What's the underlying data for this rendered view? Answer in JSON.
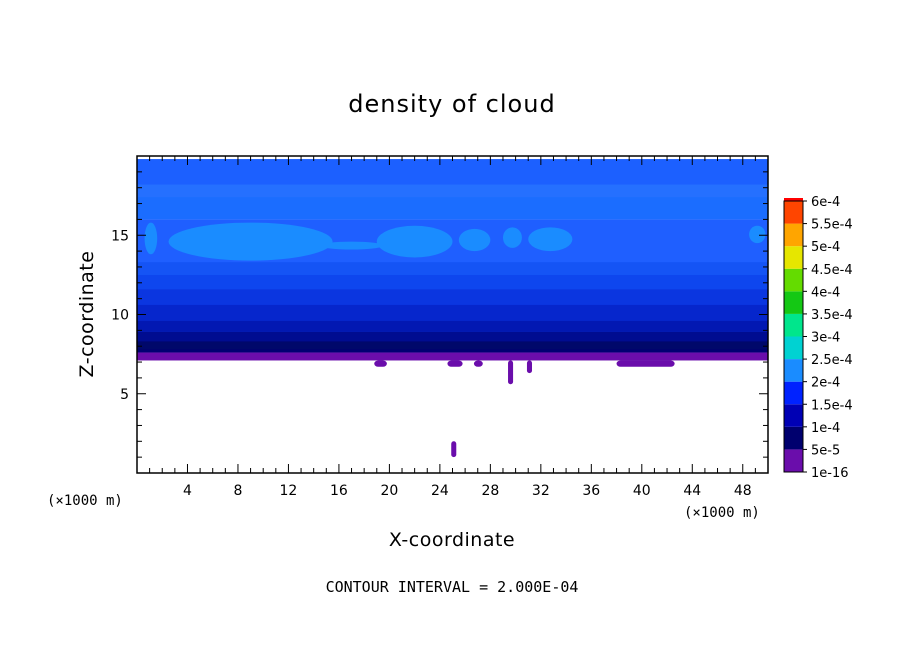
{
  "chart_data": {
    "type": "heatmap",
    "title": "density of cloud",
    "xlabel": "X-coordinate",
    "ylabel": "Z-coordinate",
    "x_unit": "(×1000 m)",
    "y_unit": "(×1000 m)",
    "xlim": [
      0,
      50
    ],
    "ylim": [
      0,
      20
    ],
    "x_ticks": [
      4,
      8,
      12,
      16,
      20,
      24,
      28,
      32,
      36,
      40,
      44,
      48
    ],
    "y_ticks": [
      5,
      10,
      15
    ],
    "footer": "CONTOUR INTERVAL = 2.000E-04",
    "colorbar": {
      "labels": [
        "1e-16",
        "5e-5",
        "1e-4",
        "1.5e-4",
        "2e-4",
        "2.5e-4",
        "3e-4",
        "3.5e-4",
        "4e-4",
        "4.5e-4",
        "5e-4",
        "5.5e-4",
        "6e-4"
      ],
      "colors": [
        "#6a0dab",
        "#00006e",
        "#0000b4",
        "#0022ff",
        "#1a8cff",
        "#00d2d2",
        "#00e68c",
        "#14c814",
        "#64dc00",
        "#e6e600",
        "#ffa500",
        "#ff4500",
        "#ff0000",
        "#ff8c8c"
      ]
    },
    "z_profile": [
      {
        "z": 19.8,
        "band": 3
      },
      {
        "z": 18.9,
        "band": 3
      },
      {
        "z": 17.6,
        "band": 3
      },
      {
        "z": 16.0,
        "band": 3
      },
      {
        "z": 12.8,
        "band": 3
      },
      {
        "z": 11.4,
        "band": 2
      },
      {
        "z": 9.8,
        "band": 2
      },
      {
        "z": 8.9,
        "band": 1
      },
      {
        "z": 8.1,
        "band": 1
      },
      {
        "z": 7.6,
        "band": 0
      },
      {
        "z": 7.1,
        "band": 0
      }
    ],
    "upper_patches": [
      {
        "x": [
          0.6,
          1.6
        ],
        "z": [
          13.8,
          15.8
        ]
      },
      {
        "x": [
          2.5,
          15.5
        ],
        "z": [
          13.4,
          15.8
        ]
      },
      {
        "x": [
          14.5,
          19.5
        ],
        "z": [
          14.1,
          14.6
        ]
      },
      {
        "x": [
          19.0,
          25.0
        ],
        "z": [
          13.6,
          15.6
        ]
      },
      {
        "x": [
          25.5,
          28.0
        ],
        "z": [
          14.0,
          15.4
        ]
      },
      {
        "x": [
          29.0,
          30.5
        ],
        "z": [
          14.2,
          15.5
        ]
      },
      {
        "x": [
          31.0,
          34.5
        ],
        "z": [
          14.0,
          15.5
        ]
      },
      {
        "x": [
          48.5,
          49.8
        ],
        "z": [
          14.5,
          15.6
        ]
      }
    ],
    "lower_patches": [
      {
        "x": [
          18.8,
          19.8
        ],
        "z": [
          6.7,
          7.1
        ]
      },
      {
        "x": [
          24.6,
          25.8
        ],
        "z": [
          6.7,
          7.1
        ]
      },
      {
        "x": [
          26.7,
          27.4
        ],
        "z": [
          6.7,
          7.1
        ]
      },
      {
        "x": [
          29.4,
          29.8
        ],
        "z": [
          5.6,
          7.1
        ]
      },
      {
        "x": [
          30.9,
          31.3
        ],
        "z": [
          6.3,
          7.1
        ]
      },
      {
        "x": [
          38.0,
          42.6
        ],
        "z": [
          6.7,
          7.1
        ]
      },
      {
        "x": [
          24.9,
          25.3
        ],
        "z": [
          1.0,
          2.0
        ]
      }
    ]
  }
}
